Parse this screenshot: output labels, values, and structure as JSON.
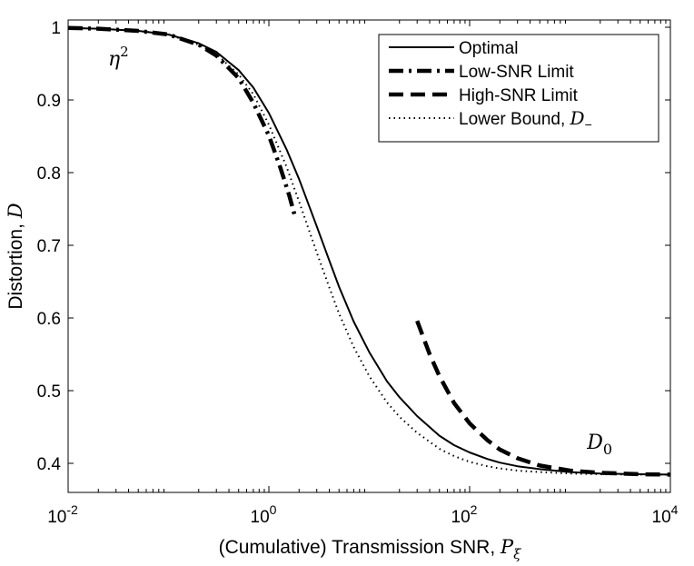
{
  "chart_data": {
    "type": "line",
    "xscale": "log",
    "xlim": [
      0.01,
      10000
    ],
    "ylim": [
      0.36,
      1.01
    ],
    "xticks": [
      {
        "value": 0.01,
        "base": "10",
        "exp": "-2"
      },
      {
        "value": 1,
        "base": "10",
        "exp": "0"
      },
      {
        "value": 100,
        "base": "10",
        "exp": "2"
      },
      {
        "value": 10000,
        "base": "10",
        "exp": "4"
      }
    ],
    "yticks": [
      {
        "value": 0.4,
        "label": "0.4"
      },
      {
        "value": 0.5,
        "label": "0.5"
      },
      {
        "value": 0.6,
        "label": "0.6"
      },
      {
        "value": 0.7,
        "label": "0.7"
      },
      {
        "value": 0.8,
        "label": "0.8"
      },
      {
        "value": 0.9,
        "label": "0.9"
      },
      {
        "value": 1.0,
        "label": "1"
      }
    ],
    "xlabel": {
      "text": "(Cumulative) Transmission SNR, ",
      "sym": "P",
      "sub": "ξ"
    },
    "ylabel": {
      "text": "Distortion, ",
      "sym": "D"
    },
    "annotations": [
      {
        "id": "eta",
        "sym": "η",
        "sup": "2",
        "x": 0.025,
        "y": 0.97
      },
      {
        "id": "d0",
        "sym": "D",
        "sub": "0",
        "x": 3000,
        "y": 0.43
      }
    ],
    "legend": {
      "position": "top-right"
    },
    "series": [
      {
        "name": "Optimal",
        "style": "solid",
        "x": [
          0.01,
          0.02,
          0.05,
          0.1,
          0.2,
          0.3,
          0.5,
          0.7,
          1,
          1.5,
          2,
          3,
          4,
          5,
          7,
          10,
          15,
          20,
          30,
          50,
          70,
          100,
          150,
          200,
          300,
          500,
          1000,
          2000,
          5000,
          10000
        ],
        "y": [
          0.999,
          0.998,
          0.995,
          0.99,
          0.978,
          0.966,
          0.941,
          0.917,
          0.882,
          0.832,
          0.791,
          0.726,
          0.679,
          0.643,
          0.595,
          0.553,
          0.513,
          0.491,
          0.465,
          0.438,
          0.425,
          0.415,
          0.406,
          0.401,
          0.396,
          0.392,
          0.388,
          0.386,
          0.385,
          0.3845
        ]
      },
      {
        "name": "Low-SNR Limit",
        "style": "dashdot",
        "x": [
          0.01,
          0.02,
          0.05,
          0.1,
          0.2,
          0.3,
          0.5,
          0.7,
          1,
          1.3,
          1.6,
          1.85
        ],
        "y": [
          0.999,
          0.998,
          0.995,
          0.99,
          0.976,
          0.961,
          0.93,
          0.896,
          0.851,
          0.807,
          0.768,
          0.736
        ]
      },
      {
        "name": "High-SNR Limit",
        "style": "dashed",
        "x": [
          30,
          40,
          50,
          70,
          100,
          150,
          200,
          300,
          500,
          1000,
          2000,
          5000,
          10000
        ],
        "y": [
          0.596,
          0.55,
          0.52,
          0.483,
          0.455,
          0.432,
          0.419,
          0.407,
          0.397,
          0.39,
          0.387,
          0.385,
          0.3845
        ]
      },
      {
        "name": "Lower Bound, D−",
        "label_text": "Lower Bound, ",
        "sym": "D",
        "sub": "−",
        "style": "dotted",
        "x": [
          0.01,
          0.02,
          0.05,
          0.1,
          0.2,
          0.3,
          0.5,
          0.7,
          1,
          1.5,
          2,
          3,
          4,
          5,
          7,
          10,
          15,
          20,
          30,
          50,
          70,
          100,
          150,
          200,
          300,
          500,
          1000,
          2000,
          5000,
          10000
        ],
        "y": [
          0.999,
          0.998,
          0.995,
          0.99,
          0.976,
          0.963,
          0.935,
          0.908,
          0.866,
          0.808,
          0.76,
          0.69,
          0.642,
          0.606,
          0.56,
          0.52,
          0.484,
          0.464,
          0.442,
          0.42,
          0.41,
          0.402,
          0.396,
          0.393,
          0.39,
          0.388,
          0.386,
          0.385,
          0.3845,
          0.3843
        ]
      }
    ]
  }
}
